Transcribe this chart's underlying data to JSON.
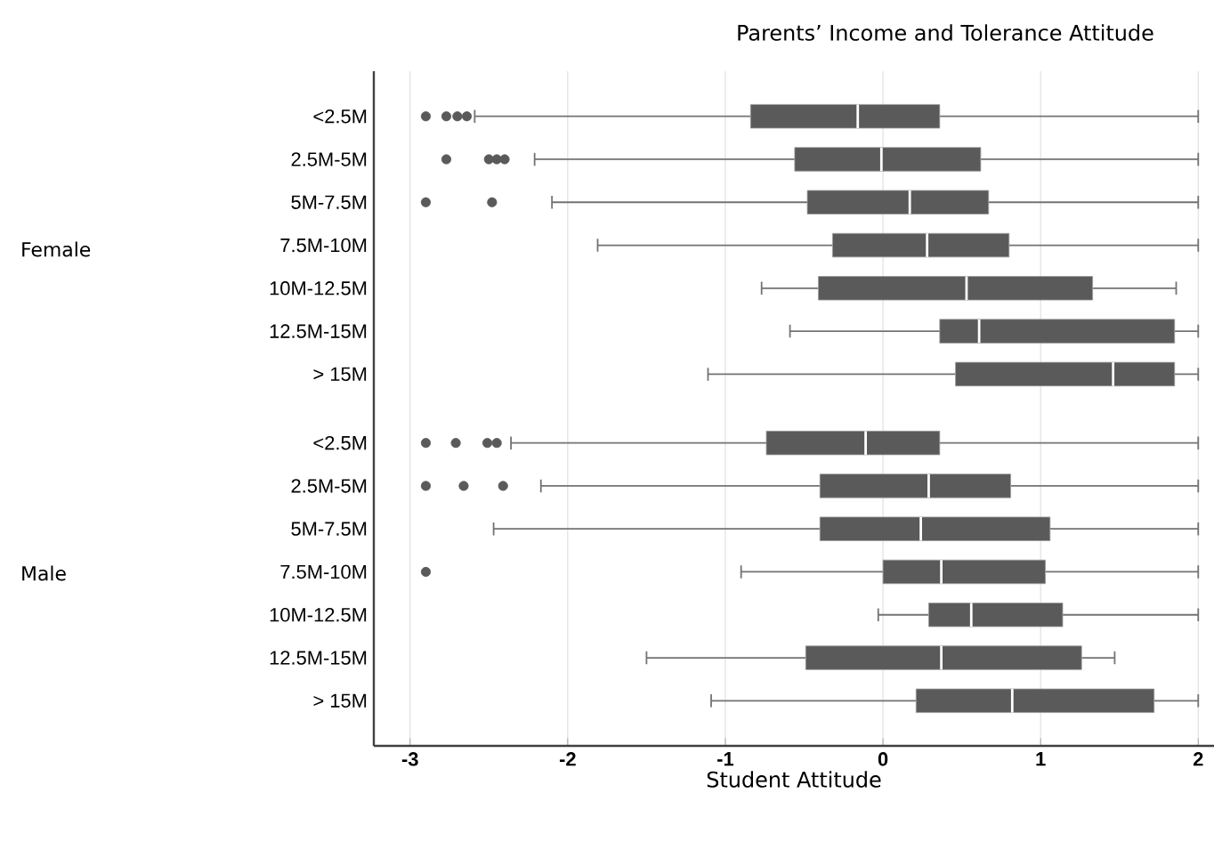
{
  "chart_data": {
    "type": "box",
    "title": "Parents’ Income and  Tolerance Attitude",
    "xlabel": "Student Attitude",
    "orientation": "horizontal",
    "grid": "x",
    "color": "#5a5a5a",
    "categories": [
      "<2.5M",
      "2.5M-5M",
      "5M-7.5M",
      "7.5M-10M",
      "10M-12.5M",
      "12.5M-15M",
      "> 15M",
      "<2.5M",
      "2.5M-5M",
      "5M-7.5M",
      "7.5M-10M",
      "10M-12.5M",
      "12.5M-15M",
      "> 15M"
    ],
    "annotations": [
      "Female",
      "Male"
    ],
    "xlim": [
      -3.23,
      2.1
    ],
    "xticks": [
      -3,
      -2,
      -1,
      0,
      1,
      2
    ],
    "boxes": [
      {
        "low": -2.59,
        "q1": -0.84,
        "median": -0.16,
        "q3": 0.36,
        "high": 2,
        "outliers": [
          -2.9,
          -2.77,
          -2.7,
          -2.64
        ]
      },
      {
        "low": -2.21,
        "q1": -0.56,
        "median": -0.01,
        "q3": 0.62,
        "high": 2,
        "outliers": [
          -2.77,
          -2.5,
          -2.45,
          -2.4
        ]
      },
      {
        "low": -2.1,
        "q1": -0.48,
        "median": 0.17,
        "q3": 0.67,
        "high": 2,
        "outliers": [
          -2.9,
          -2.48
        ]
      },
      {
        "low": -1.81,
        "q1": -0.32,
        "median": 0.28,
        "q3": 0.8,
        "high": 2
      },
      {
        "low": -0.77,
        "q1": -0.41,
        "median": 0.53,
        "q3": 1.33,
        "high": 1.86
      },
      {
        "low": -0.59,
        "q1": 0.36,
        "median": 0.61,
        "q3": 1.85,
        "high": 2
      },
      {
        "low": -1.11,
        "q1": 0.46,
        "median": 1.46,
        "q3": 1.85,
        "high": 2
      },
      {
        "low": -2.36,
        "q1": -0.74,
        "median": -0.11,
        "q3": 0.36,
        "high": 2,
        "outliers": [
          -2.9,
          -2.71,
          -2.51,
          -2.45
        ]
      },
      {
        "low": -2.17,
        "q1": -0.4,
        "median": 0.29,
        "q3": 0.81,
        "high": 2,
        "outliers": [
          -2.9,
          -2.66,
          -2.41
        ]
      },
      {
        "low": -2.47,
        "q1": -0.4,
        "median": 0.24,
        "q3": 1.06,
        "high": 2
      },
      {
        "low": -0.9,
        "q1": 0.0,
        "median": 0.37,
        "q3": 1.03,
        "high": 2,
        "outliers": [
          -2.9
        ]
      },
      {
        "low": -0.03,
        "q1": 0.29,
        "median": 0.56,
        "q3": 1.14,
        "high": 2
      },
      {
        "low": -1.5,
        "q1": -0.49,
        "median": 0.37,
        "q3": 1.26,
        "high": 1.47
      },
      {
        "low": -1.09,
        "q1": 0.21,
        "median": 0.82,
        "q3": 1.72,
        "high": 2
      }
    ]
  }
}
